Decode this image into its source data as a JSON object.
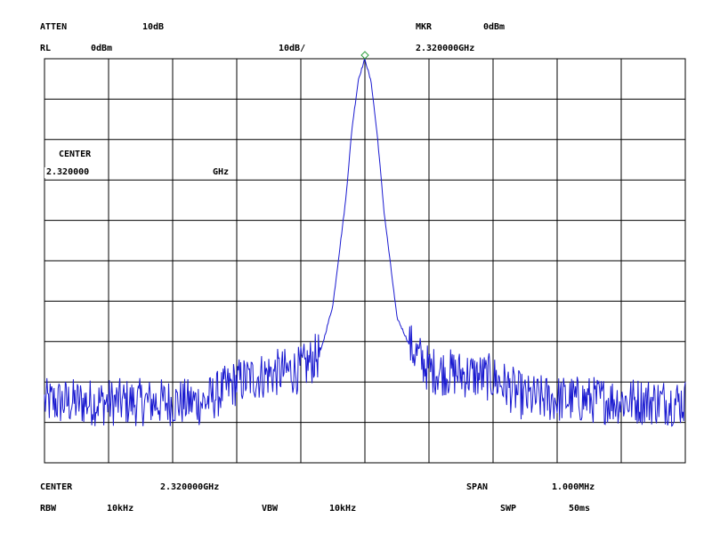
{
  "header": {
    "atten_label": "ATTEN",
    "atten_value": "10dB",
    "rl_label": "RL",
    "rl_value": "0dBm",
    "scale": "10dB/",
    "marker_label": "MKR",
    "marker_level": "0dBm",
    "marker_freq": "2.320000GHz"
  },
  "annotation": {
    "center_label": "CENTER",
    "center_value": "2.320000",
    "center_unit": "GHz"
  },
  "footer": {
    "center_label": "CENTER",
    "center_value": "2.320000GHz",
    "span_label": "SPAN",
    "span_value": "1.000MHz",
    "rbw_label": "RBW",
    "rbw_value": "10kHz",
    "vbw_label": "VBW",
    "vbw_value": "10kHz",
    "swp_label": "SWP",
    "swp_value": "50ms"
  },
  "colors": {
    "trace": "#1a1ad0",
    "marker": "#2e9e3e",
    "grid": "#000000",
    "background": "#ffffff"
  },
  "chart_data": {
    "type": "line",
    "x_unit": "MHz",
    "y_unit": "dBm",
    "xlim": [
      2319.5,
      2320.5
    ],
    "ylim": [
      -100,
      0
    ],
    "x_divisions": 10,
    "y_divisions": 10,
    "grid": true,
    "marker": {
      "x": 2320.0,
      "y": 0
    },
    "noise_floor_dbm": -85,
    "series": [
      {
        "x": [
          2319.5,
          2319.75,
          2319.8,
          2319.85,
          2319.9,
          2319.93,
          2319.95,
          2319.97,
          2319.98,
          2319.99,
          2320.0,
          2320.01,
          2320.02,
          2320.03,
          2320.05,
          2320.07,
          2320.1,
          2320.15,
          2320.2,
          2320.25,
          2320.5
        ],
        "y": [
          -85,
          -85,
          -80,
          -78,
          -77,
          -73,
          -61,
          -35,
          -17,
          -5,
          0,
          -6,
          -20,
          -38,
          -64,
          -71,
          -77,
          -78,
          -79,
          -84,
          -85
        ]
      }
    ]
  }
}
